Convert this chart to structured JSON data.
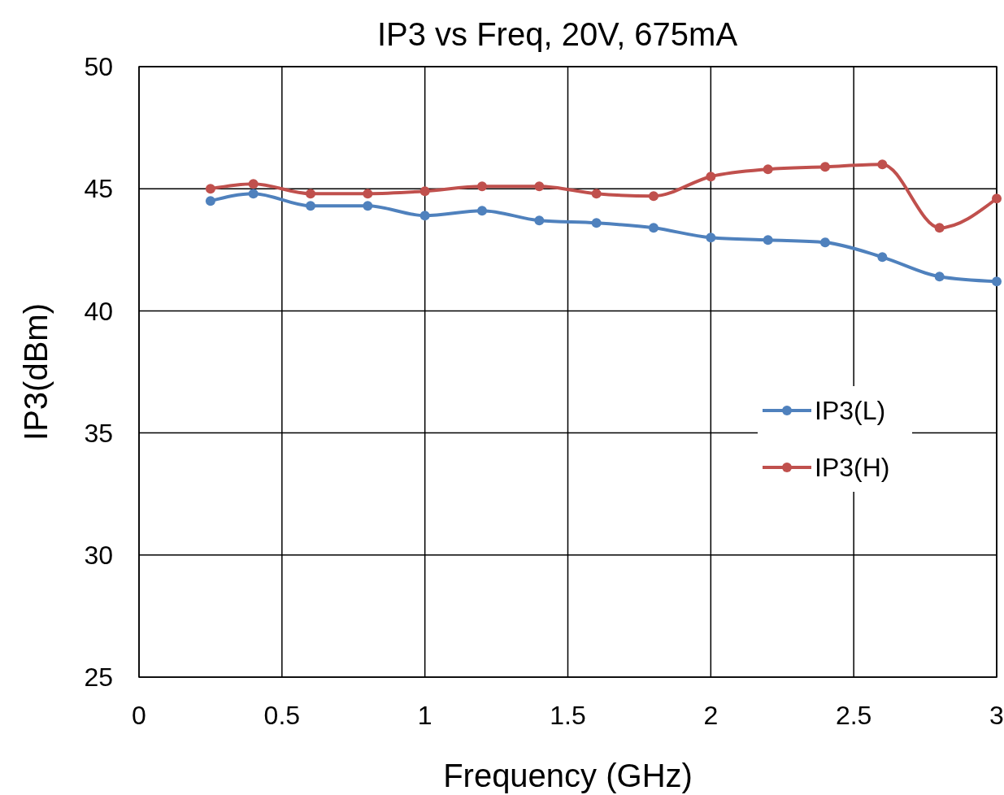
{
  "chart_data": {
    "type": "line",
    "title": "IP3 vs Freq, 20V, 675mA",
    "xlabel": "Frequency (GHz)",
    "ylabel": "IP3(dBm)",
    "x": [
      0.25,
      0.4,
      0.6,
      0.8,
      1.0,
      1.2,
      1.4,
      1.6,
      1.8,
      2.0,
      2.2,
      2.4,
      2.6,
      2.8,
      3.0
    ],
    "series": [
      {
        "name": "IP3(L)",
        "color": "#4f81bd",
        "values": [
          44.5,
          44.8,
          44.3,
          44.3,
          43.9,
          44.1,
          43.7,
          43.6,
          43.4,
          43.0,
          42.9,
          42.8,
          42.2,
          41.4,
          41.2
        ]
      },
      {
        "name": "IP3(H)",
        "color": "#c0504d",
        "values": [
          45.0,
          45.2,
          44.8,
          44.8,
          44.9,
          45.1,
          45.1,
          44.8,
          44.7,
          45.5,
          45.8,
          45.9,
          46.0,
          43.4,
          44.6
        ]
      }
    ],
    "xlim": [
      0,
      3
    ],
    "xticks": [
      0,
      0.5,
      1,
      1.5,
      2,
      2.5,
      3
    ],
    "ylim": [
      25,
      50
    ],
    "yticks": [
      25,
      30,
      35,
      40,
      45,
      50
    ],
    "grid": true,
    "legend": "right",
    "marker": "circle",
    "line_style": "solid"
  }
}
